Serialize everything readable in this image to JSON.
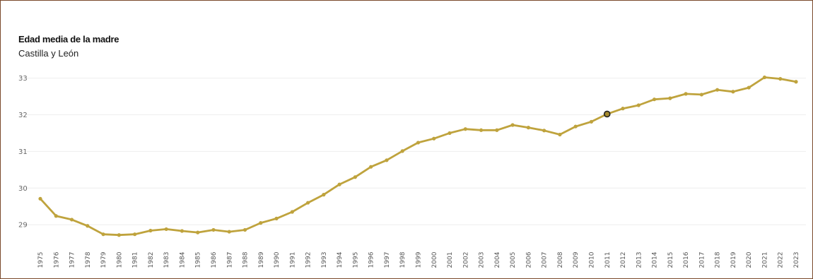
{
  "chart_data": {
    "type": "line",
    "title": "Edad media de la madre",
    "subtitle": "Castilla y León",
    "x": [
      "1975",
      "1976",
      "1977",
      "1978",
      "1979",
      "1980",
      "1981",
      "1982",
      "1983",
      "1984",
      "1985",
      "1986",
      "1987",
      "1988",
      "1989",
      "1990",
      "1991",
      "1992",
      "1993",
      "1994",
      "1995",
      "1996",
      "1997",
      "1998",
      "1999",
      "2000",
      "2001",
      "2002",
      "2003",
      "2004",
      "2005",
      "2006",
      "2007",
      "2008",
      "2009",
      "2010",
      "2011",
      "2012",
      "2013",
      "2014",
      "2015",
      "2016",
      "2017",
      "2018",
      "2019",
      "2020",
      "2021",
      "2022",
      "2023"
    ],
    "values": [
      29.71,
      29.24,
      29.14,
      28.97,
      28.74,
      28.72,
      28.74,
      28.84,
      28.88,
      28.83,
      28.79,
      28.86,
      28.81,
      28.86,
      29.05,
      29.17,
      29.35,
      29.6,
      29.82,
      30.1,
      30.3,
      30.58,
      30.76,
      31.01,
      31.24,
      31.35,
      31.5,
      31.61,
      31.58,
      31.58,
      31.72,
      31.65,
      31.57,
      31.46,
      31.68,
      31.81,
      32.02,
      32.17,
      32.26,
      32.42,
      32.45,
      32.57,
      32.55,
      32.68,
      32.63,
      32.74,
      33.02,
      32.98,
      32.9
    ],
    "y_ticks": [
      29,
      30,
      31,
      32,
      33
    ],
    "ylim": [
      28.58,
      33.3
    ],
    "highlighted_point": "2011",
    "grid": true,
    "legend": "none"
  },
  "colors": {
    "line": "#bfa33d",
    "marker": "#bfa33d",
    "highlight_fill": "#a58a2e",
    "highlight_stroke": "#222222",
    "grid": "#eeeeee",
    "frame": "#7a4a2c"
  }
}
